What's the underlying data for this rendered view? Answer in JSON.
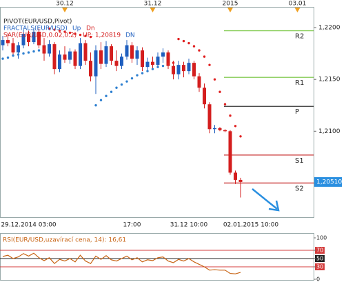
{
  "chart_data": [
    {
      "type": "candlestick",
      "legend": [
        "PIVOT(EUR/USD,Pivot)",
        "FRACTALS(EUR/USD)",
        "Up",
        "Dn",
        "SAR(EUR/USD,0.02,0.2)",
        "UP: 1,20819",
        "DN"
      ],
      "categories": [
        null,
        null,
        null,
        null,
        null,
        "29.12.2014 03:00",
        null,
        null,
        null,
        null,
        null,
        null,
        null,
        null,
        null,
        null,
        null,
        null,
        null,
        null,
        null,
        null,
        null,
        null,
        null,
        "17:00",
        null,
        null,
        null,
        null,
        null,
        null,
        null,
        null,
        null,
        null,
        "31.12 10:00",
        null,
        null,
        null,
        null,
        null,
        null,
        null,
        null,
        null,
        null,
        null,
        "02.01.2015 10:00",
        null,
        null,
        null,
        null,
        null,
        null,
        null,
        null,
        null,
        null,
        null
      ],
      "top_categories": [
        null,
        null,
        null,
        null,
        null,
        null,
        null,
        null,
        null,
        null,
        null,
        null,
        "30.12",
        null,
        null,
        null,
        null,
        null,
        null,
        null,
        null,
        null,
        null,
        null,
        null,
        null,
        null,
        null,
        null,
        "31.12",
        null,
        null,
        null,
        null,
        null,
        null,
        null,
        null,
        null,
        null,
        null,
        null,
        null,
        null,
        "2015",
        null,
        null,
        null,
        null,
        null,
        null,
        null,
        null,
        null,
        null,
        null,
        null,
        "03.01",
        null,
        null
      ],
      "open": [
        1.2183,
        1.2188,
        1.2185,
        1.2176,
        1.2183,
        1.2194,
        1.2186,
        1.2196,
        1.2183,
        1.2175,
        1.2184,
        1.216,
        1.2174,
        1.2169,
        1.2177,
        1.2163,
        1.2185,
        1.2168,
        1.2153,
        1.2178,
        1.2165,
        1.2182,
        1.2168,
        1.2163,
        1.2172,
        1.2183,
        1.217,
        1.2178,
        1.2162,
        1.2167,
        1.2164,
        1.2172,
        1.2176,
        1.2163,
        1.2155,
        1.2164,
        1.2158,
        1.2166,
        1.2153,
        1.2142,
        1.2126,
        1.2102,
        1.2103,
        1.2101,
        1.21,
        1.206,
        1.2053,
        null,
        null,
        null,
        null,
        null,
        null,
        null,
        null,
        null,
        null,
        null,
        null,
        null
      ],
      "high": [
        1.2192,
        1.2195,
        1.219,
        1.2186,
        1.2198,
        1.2197,
        1.2199,
        1.2199,
        1.219,
        1.2188,
        1.2186,
        1.2178,
        1.2182,
        1.218,
        1.2179,
        1.219,
        1.2188,
        1.2176,
        1.2183,
        1.2186,
        1.2187,
        1.2184,
        1.2178,
        1.2175,
        1.2188,
        1.2186,
        1.2182,
        1.2181,
        1.2171,
        1.2172,
        1.2176,
        1.218,
        1.2178,
        1.2168,
        1.2168,
        1.2167,
        1.217,
        1.2168,
        1.2156,
        1.2146,
        1.2128,
        1.2106,
        1.2104,
        1.2102,
        1.2101,
        1.2062,
        1.2055,
        null,
        null,
        null,
        null,
        null,
        null,
        null,
        null,
        null,
        null,
        null,
        null,
        null
      ],
      "low": [
        1.2178,
        1.2182,
        1.2172,
        1.217,
        1.218,
        1.2182,
        1.2184,
        1.218,
        1.2168,
        1.2172,
        1.2155,
        1.2157,
        1.2166,
        1.2165,
        1.216,
        1.216,
        1.2164,
        1.2148,
        1.2136,
        1.216,
        1.2162,
        1.2164,
        1.2158,
        1.216,
        1.2169,
        1.2166,
        1.2164,
        1.2158,
        1.2159,
        1.216,
        1.2161,
        1.2166,
        1.216,
        1.215,
        1.215,
        1.2152,
        1.2155,
        1.215,
        1.2138,
        1.2122,
        1.2098,
        1.2098,
        1.21,
        1.2099,
        1.2058,
        1.2049,
        1.2036,
        null,
        null,
        null,
        null,
        null,
        null,
        null,
        null,
        null,
        null,
        null,
        null,
        null
      ],
      "close": [
        1.2188,
        1.2185,
        1.2176,
        1.2183,
        1.2194,
        1.2186,
        1.2196,
        1.2183,
        1.2175,
        1.2184,
        1.216,
        1.2174,
        1.2169,
        1.2177,
        1.2163,
        1.2185,
        1.2168,
        1.2153,
        1.2178,
        1.2165,
        1.2182,
        1.2168,
        1.2163,
        1.2172,
        1.2183,
        1.217,
        1.2178,
        1.2162,
        1.2167,
        1.2164,
        1.2172,
        1.2176,
        1.2163,
        1.2155,
        1.2164,
        1.2158,
        1.2166,
        1.2153,
        1.2142,
        1.2126,
        1.2102,
        1.2103,
        1.2101,
        1.21,
        1.206,
        1.2053,
        1.2051,
        null,
        null,
        null,
        null,
        null,
        null,
        null,
        null,
        null,
        null,
        null,
        null,
        null
      ],
      "sar": [
        1.217,
        1.2171,
        1.2173,
        1.2174,
        1.2175,
        1.2176,
        1.2177,
        1.2178,
        1.2179,
        1.2199,
        1.2198,
        1.2197,
        1.2196,
        1.2195,
        1.2194,
        1.2193,
        1.2192,
        1.2191,
        1.2125,
        1.213,
        1.2134,
        1.2138,
        1.2142,
        1.2145,
        1.2148,
        1.2151,
        1.2154,
        1.2156,
        1.2158,
        1.216,
        1.2162,
        1.2163,
        1.2165,
        1.2166,
        1.2189,
        1.2187,
        1.2185,
        1.2182,
        1.2178,
        1.2172,
        1.2164,
        1.215,
        1.2138,
        1.2126,
        1.2115,
        1.2105,
        1.2095,
        null,
        null,
        null,
        null,
        null,
        null,
        null,
        null,
        null,
        null,
        null,
        null,
        null
      ],
      "up_color": "#1f5fbf",
      "down_color": "#d41e1e",
      "pivots": [
        {
          "name": "R2",
          "value": 1.2197,
          "color": "#86cc55"
        },
        {
          "name": "R1",
          "value": 1.2152,
          "color": "#86cc55"
        },
        {
          "name": "P",
          "value": 1.2124,
          "color": "#333333"
        },
        {
          "name": "S1",
          "value": 1.2077,
          "color": "#c83232"
        },
        {
          "name": "S2",
          "value": 1.205,
          "color": "#c83232"
        }
      ],
      "last_price": {
        "value": 1.2051,
        "label": "1,20510"
      },
      "ylim": [
        1.2017,
        1.222
      ],
      "yticks": [
        {
          "value": 1.22,
          "label": "1,2200"
        },
        {
          "value": 1.215,
          "label": "1,2150"
        },
        {
          "value": 1.21,
          "label": "1,2100"
        },
        {
          "value": 1.205,
          "label": "1,2050"
        }
      ]
    },
    {
      "type": "line",
      "title": "RSI(EUR/USD,uzavírací cena, 14): 16,61",
      "color": "#c86414",
      "values": [
        55,
        58,
        50,
        54,
        62,
        56,
        63,
        52,
        45,
        52,
        38,
        48,
        44,
        50,
        42,
        58,
        44,
        38,
        56,
        48,
        57,
        47,
        44,
        50,
        56,
        47,
        52,
        42,
        47,
        45,
        52,
        54,
        44,
        40,
        48,
        44,
        50,
        42,
        36,
        30,
        22,
        23,
        22,
        22,
        14,
        13,
        16.61
      ],
      "levels": [
        70,
        50,
        30
      ],
      "level_colors": [
        "#d43c3c",
        "#222222",
        "#d43c3c"
      ],
      "ylim": [
        0,
        100
      ],
      "yticks": [
        100,
        70,
        50,
        30,
        0
      ]
    }
  ]
}
